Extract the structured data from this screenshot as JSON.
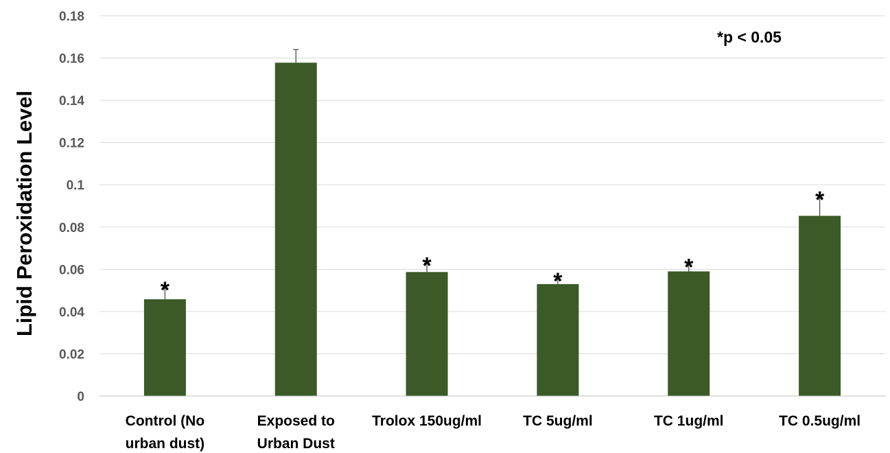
{
  "chart_data": {
    "type": "bar",
    "title": "",
    "xlabel": "",
    "ylabel": "Lipid Peroxidation Level",
    "ylim": [
      0,
      0.18
    ],
    "y_ticks": [
      "0",
      "0.02",
      "0.04",
      "0.06",
      "0.08",
      "0.1",
      "0.12",
      "0.14",
      "0.16",
      "0.18"
    ],
    "grid": true,
    "legend": "none",
    "categories": [
      [
        "Control (No",
        "urban dust)"
      ],
      [
        "Exposed to",
        "Urban Dust"
      ],
      [
        "Trolox 150ug/ml"
      ],
      [
        "TC 5ug/ml"
      ],
      [
        "TC 1ug/ml"
      ],
      [
        "TC 0.5ug/ml"
      ]
    ],
    "values": [
      0.0458,
      0.1578,
      0.0587,
      0.053,
      0.059,
      0.0853
    ],
    "errors": [
      0.0055,
      0.0062,
      0.0042,
      0.0025,
      0.0033,
      0.0088
    ],
    "significance": [
      "*",
      "",
      "*",
      "*",
      "*",
      "*"
    ],
    "annotation": "*p < 0.05",
    "bar_color": "#3b5a27"
  }
}
